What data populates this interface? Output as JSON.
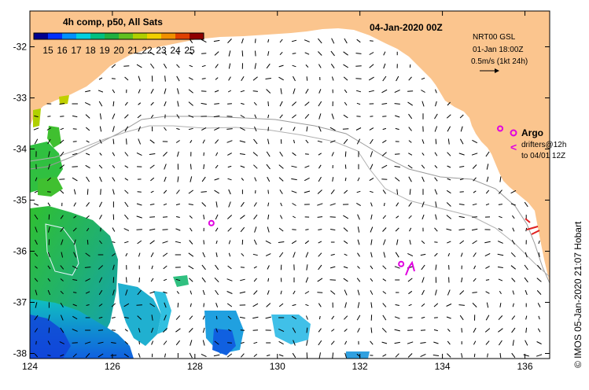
{
  "map": {
    "date_title": "04-Jan-2020 00Z",
    "colorbar": {
      "title": "4h comp, p50, All Sats",
      "ticks": [
        "15",
        "16",
        "17",
        "18",
        "19",
        "20",
        "21",
        "22",
        "23",
        "24",
        "25"
      ],
      "range": [
        14,
        26
      ],
      "colors": [
        "#000090",
        "#0030ff",
        "#0090ff",
        "#00d0e0",
        "#00c080",
        "#20b040",
        "#60c020",
        "#b0d000",
        "#f0d000",
        "#f09000",
        "#e04000",
        "#900000"
      ]
    },
    "currents_legend": {
      "lines": [
        "NRT00 GSL",
        "01-Jan 18:00Z",
        "0.5m/s (1kt 24h)"
      ]
    },
    "argo_legend": {
      "title": "Argo",
      "drifter_lines": [
        "drifters@12h",
        "to 04/01 12Z"
      ],
      "argo_color": "#e000e0"
    },
    "credit": "© IMOS 05-Jan-2020 21:07 Hobart",
    "axes": {
      "lon_ticks": [
        "124",
        "126",
        "128",
        "130",
        "132",
        "134",
        "136"
      ],
      "lat_ticks": [
        "-32",
        "-33",
        "-34",
        "-35",
        "-36",
        "-37",
        "-38"
      ],
      "lon_range": [
        124,
        136.6
      ],
      "lat_range": [
        -38.1,
        -31.3
      ]
    },
    "land_color": "#fbc58e",
    "argo_floats": [
      {
        "lon": 128.4,
        "lat": -35.45
      },
      {
        "lon": 133.0,
        "lat": -36.25
      },
      {
        "lon": 135.4,
        "lat": -33.6
      }
    ]
  }
}
